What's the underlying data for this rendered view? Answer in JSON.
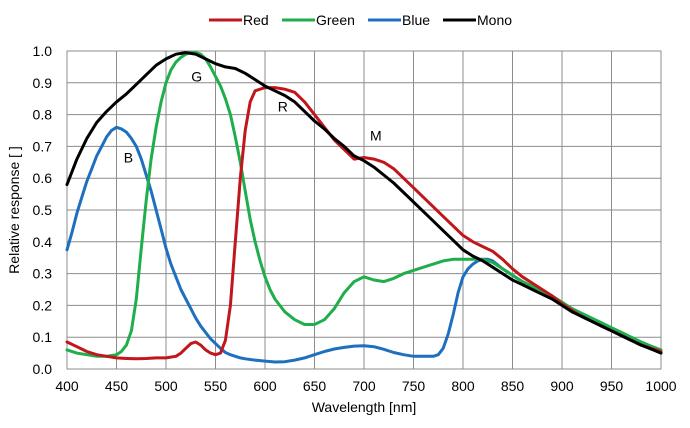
{
  "chart_data": {
    "type": "line",
    "title": "",
    "xlabel": "Wavelength [nm]",
    "ylabel": "Relative response [ ]",
    "xlim": [
      400,
      1000
    ],
    "ylim": [
      0.0,
      1.0
    ],
    "xticks": [
      "400",
      "450",
      "500",
      "550",
      "600",
      "650",
      "700",
      "750",
      "800",
      "850",
      "900",
      "950",
      "1000"
    ],
    "yticks": [
      "0.0",
      "0.1",
      "0.2",
      "0.3",
      "0.4",
      "0.5",
      "0.6",
      "0.7",
      "0.8",
      "0.9",
      "1.0"
    ],
    "grid": true,
    "legend_position": "top",
    "series": [
      {
        "name": "Red",
        "color": "#c0161c",
        "x": [
          400,
          410,
          420,
          430,
          440,
          450,
          460,
          470,
          480,
          490,
          500,
          510,
          515,
          520,
          525,
          530,
          535,
          540,
          545,
          550,
          555,
          560,
          565,
          570,
          575,
          580,
          585,
          590,
          595,
          600,
          605,
          610,
          620,
          630,
          640,
          650,
          660,
          670,
          680,
          690,
          700,
          710,
          720,
          730,
          740,
          750,
          760,
          770,
          780,
          790,
          800,
          810,
          820,
          830,
          840,
          850,
          860,
          870,
          880,
          890,
          900,
          910,
          920,
          930,
          940,
          950,
          960,
          970,
          980,
          990,
          1000
        ],
        "y": [
          0.085,
          0.07,
          0.055,
          0.045,
          0.04,
          0.035,
          0.033,
          0.032,
          0.033,
          0.035,
          0.035,
          0.04,
          0.05,
          0.065,
          0.08,
          0.085,
          0.075,
          0.06,
          0.05,
          0.045,
          0.05,
          0.09,
          0.2,
          0.4,
          0.6,
          0.75,
          0.84,
          0.875,
          0.88,
          0.885,
          0.885,
          0.885,
          0.88,
          0.87,
          0.84,
          0.8,
          0.76,
          0.72,
          0.69,
          0.66,
          0.665,
          0.66,
          0.65,
          0.63,
          0.6,
          0.57,
          0.54,
          0.51,
          0.48,
          0.45,
          0.42,
          0.4,
          0.385,
          0.37,
          0.345,
          0.315,
          0.29,
          0.27,
          0.25,
          0.23,
          0.205,
          0.185,
          0.165,
          0.15,
          0.135,
          0.12,
          0.105,
          0.09,
          0.075,
          0.065,
          0.055
        ]
      },
      {
        "name": "Green",
        "color": "#1fae4b",
        "x": [
          400,
          410,
          420,
          430,
          440,
          450,
          455,
          460,
          465,
          470,
          475,
          480,
          485,
          490,
          495,
          500,
          505,
          510,
          515,
          520,
          525,
          530,
          535,
          540,
          545,
          550,
          555,
          560,
          565,
          570,
          575,
          580,
          585,
          590,
          595,
          600,
          605,
          610,
          620,
          630,
          640,
          650,
          660,
          670,
          680,
          690,
          700,
          710,
          720,
          730,
          740,
          750,
          760,
          770,
          780,
          790,
          800,
          810,
          820,
          830,
          840,
          850,
          860,
          870,
          880,
          890,
          900,
          910,
          920,
          930,
          940,
          950,
          960,
          970,
          980,
          990,
          1000
        ],
        "y": [
          0.06,
          0.05,
          0.045,
          0.04,
          0.04,
          0.045,
          0.055,
          0.075,
          0.12,
          0.22,
          0.38,
          0.53,
          0.66,
          0.76,
          0.84,
          0.9,
          0.94,
          0.965,
          0.98,
          0.99,
          0.995,
          0.995,
          0.99,
          0.975,
          0.95,
          0.92,
          0.89,
          0.85,
          0.8,
          0.73,
          0.65,
          0.56,
          0.47,
          0.4,
          0.34,
          0.29,
          0.25,
          0.22,
          0.18,
          0.155,
          0.14,
          0.14,
          0.155,
          0.19,
          0.24,
          0.275,
          0.29,
          0.28,
          0.275,
          0.285,
          0.3,
          0.31,
          0.32,
          0.33,
          0.34,
          0.345,
          0.345,
          0.345,
          0.345,
          0.335,
          0.315,
          0.295,
          0.275,
          0.26,
          0.245,
          0.23,
          0.21,
          0.19,
          0.175,
          0.16,
          0.145,
          0.13,
          0.115,
          0.1,
          0.085,
          0.072,
          0.06
        ]
      },
      {
        "name": "Blue",
        "color": "#1f6fbf",
        "x": [
          400,
          405,
          410,
          415,
          420,
          425,
          430,
          435,
          440,
          445,
          450,
          455,
          460,
          465,
          470,
          475,
          480,
          485,
          490,
          495,
          500,
          505,
          510,
          515,
          520,
          525,
          530,
          535,
          540,
          545,
          550,
          555,
          560,
          565,
          570,
          575,
          580,
          590,
          600,
          610,
          620,
          630,
          640,
          650,
          660,
          670,
          680,
          690,
          700,
          710,
          720,
          730,
          740,
          750,
          760,
          770,
          775,
          780,
          785,
          790,
          795,
          800,
          805,
          810,
          815,
          820,
          825,
          830,
          840,
          850,
          860,
          870,
          880,
          890,
          900,
          910,
          920,
          930,
          940,
          950,
          960,
          970,
          980,
          990,
          1000
        ],
        "y": [
          0.375,
          0.43,
          0.49,
          0.54,
          0.59,
          0.63,
          0.67,
          0.7,
          0.73,
          0.75,
          0.76,
          0.755,
          0.745,
          0.725,
          0.7,
          0.66,
          0.61,
          0.56,
          0.5,
          0.44,
          0.38,
          0.33,
          0.29,
          0.25,
          0.22,
          0.19,
          0.16,
          0.135,
          0.115,
          0.095,
          0.08,
          0.065,
          0.052,
          0.045,
          0.04,
          0.035,
          0.032,
          0.028,
          0.025,
          0.022,
          0.023,
          0.028,
          0.035,
          0.045,
          0.055,
          0.063,
          0.068,
          0.072,
          0.073,
          0.07,
          0.062,
          0.052,
          0.045,
          0.04,
          0.04,
          0.04,
          0.045,
          0.065,
          0.11,
          0.17,
          0.24,
          0.29,
          0.315,
          0.33,
          0.34,
          0.345,
          0.345,
          0.34,
          0.315,
          0.295,
          0.275,
          0.26,
          0.245,
          0.225,
          0.205,
          0.185,
          0.165,
          0.15,
          0.135,
          0.12,
          0.105,
          0.09,
          0.075,
          0.063,
          0.052
        ]
      },
      {
        "name": "Mono",
        "color": "#000000",
        "x": [
          400,
          410,
          420,
          430,
          440,
          450,
          460,
          470,
          480,
          490,
          500,
          510,
          520,
          530,
          540,
          550,
          560,
          570,
          580,
          590,
          600,
          610,
          620,
          630,
          640,
          650,
          660,
          670,
          680,
          690,
          700,
          710,
          720,
          730,
          740,
          750,
          760,
          770,
          780,
          790,
          800,
          810,
          820,
          830,
          840,
          850,
          860,
          870,
          880,
          890,
          900,
          910,
          920,
          930,
          940,
          950,
          960,
          970,
          980,
          990,
          1000
        ],
        "y": [
          0.58,
          0.66,
          0.725,
          0.775,
          0.81,
          0.84,
          0.865,
          0.895,
          0.925,
          0.955,
          0.975,
          0.99,
          0.995,
          0.99,
          0.975,
          0.96,
          0.95,
          0.945,
          0.93,
          0.91,
          0.89,
          0.875,
          0.86,
          0.84,
          0.81,
          0.78,
          0.755,
          0.725,
          0.7,
          0.67,
          0.655,
          0.635,
          0.61,
          0.585,
          0.555,
          0.525,
          0.495,
          0.465,
          0.435,
          0.405,
          0.375,
          0.355,
          0.34,
          0.32,
          0.3,
          0.28,
          0.265,
          0.25,
          0.235,
          0.22,
          0.2,
          0.18,
          0.165,
          0.15,
          0.135,
          0.12,
          0.105,
          0.09,
          0.075,
          0.063,
          0.05
        ]
      }
    ],
    "annotations": [
      {
        "text": "B",
        "x": 462,
        "y": 0.665
      },
      {
        "text": "G",
        "x": 531,
        "y": 0.92
      },
      {
        "text": "R",
        "x": 618,
        "y": 0.825
      },
      {
        "text": "M",
        "x": 712,
        "y": 0.735
      }
    ]
  }
}
